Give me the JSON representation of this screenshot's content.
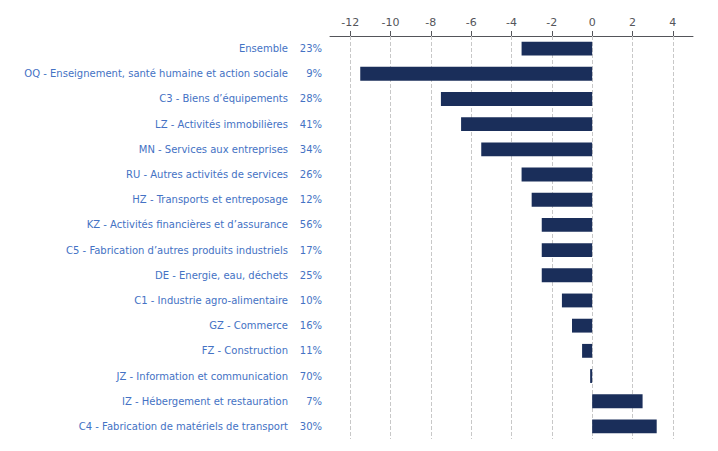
{
  "chart_data": {
    "type": "bar",
    "orientation": "horizontal",
    "categories": [
      "Ensemble",
      "OQ - Enseignement, santé humaine et action sociale",
      "C3 - Biens d’équipements",
      "LZ - Activités immobilières",
      "MN - Services aux entreprises",
      "RU - Autres activités de services",
      "HZ - Transports et entreposage",
      "KZ - Activités financières et d’assurance",
      "C5 - Fabrication d’autres produits industriels",
      "DE - Energie, eau, déchets",
      "C1 - Industrie agro-alimentaire",
      "GZ - Commerce",
      "FZ - Construction",
      "JZ - Information et communication",
      "IZ - Hébergement et restauration",
      "C4 - Fabrication de matériels de transport"
    ],
    "values": [
      -3.5,
      -11.5,
      -7.5,
      -6.5,
      -5.5,
      -3.5,
      -3.0,
      -2.5,
      -2.5,
      -2.5,
      -1.5,
      -1.0,
      -0.5,
      -0.1,
      2.5,
      3.2
    ],
    "annotations": [
      {
        "category": "Ensemble",
        "text": "23%"
      },
      {
        "category": "OQ - Enseignement, santé humaine et action sociale",
        "text": "9%"
      },
      {
        "category": "C3 - Biens d’équipements",
        "text": "28%"
      },
      {
        "category": "LZ - Activités immobilières",
        "text": "41%"
      },
      {
        "category": "MN - Services aux entreprises",
        "text": "34%"
      },
      {
        "category": "RU - Autres activités de services",
        "text": "26%"
      },
      {
        "category": "HZ - Transports et entreposage",
        "text": "12%"
      },
      {
        "category": "KZ - Activités financières et d’assurance",
        "text": "56%"
      },
      {
        "category": "C5 - Fabrication d’autres produits industriels",
        "text": "17%"
      },
      {
        "category": "DE - Energie, eau, déchets",
        "text": "25%"
      },
      {
        "category": "C1 - Industrie agro-alimentaire",
        "text": "10%"
      },
      {
        "category": "GZ - Commerce",
        "text": "16%"
      },
      {
        "category": "FZ - Construction",
        "text": "11%"
      },
      {
        "category": "JZ - Information et communication",
        "text": "70%"
      },
      {
        "category": "IZ - Hébergement et restauration",
        "text": "7%"
      },
      {
        "category": "C4 - Fabrication de matériels de transport",
        "text": "30%"
      }
    ],
    "color": "#1a2e5a",
    "xlim": [
      -13,
      5
    ],
    "xticks": [
      -12,
      -10,
      -8,
      -6,
      -4,
      -2,
      0,
      2,
      4
    ],
    "grid": true
  }
}
